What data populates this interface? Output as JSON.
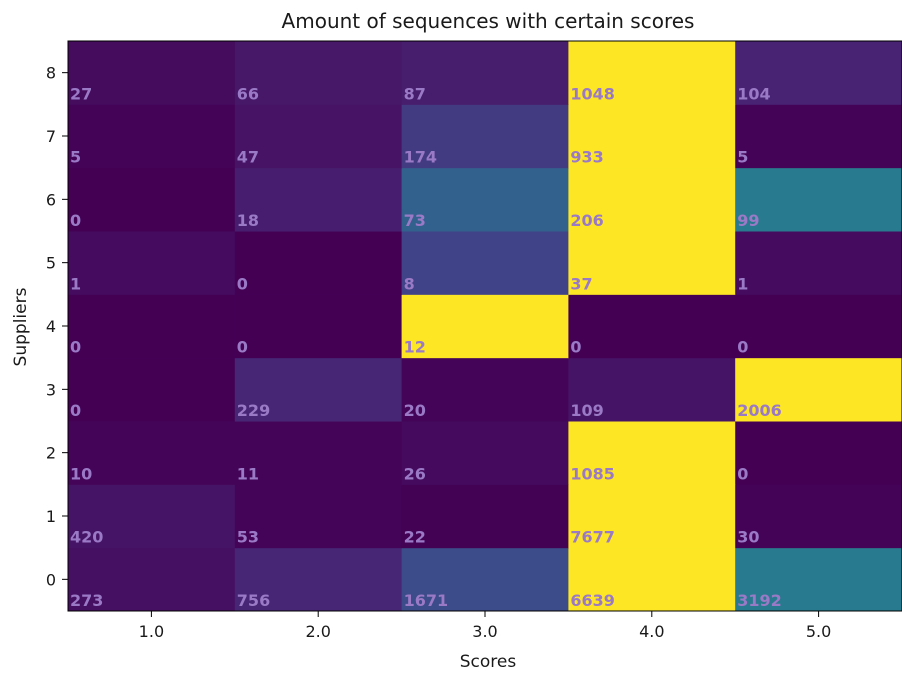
{
  "chart_data": {
    "type": "heatmap",
    "title": "Amount of sequences with certain scores",
    "xlabel": "Scores",
    "ylabel": "Suppliers",
    "x_tick_labels": [
      "1.0",
      "2.0",
      "3.0",
      "4.0",
      "5.0"
    ],
    "y_tick_labels": [
      "0",
      "1",
      "2",
      "3",
      "4",
      "5",
      "6",
      "7",
      "8"
    ],
    "colormap": "viridis",
    "grid": false,
    "value_label_color": "#9a79c6",
    "values": [
      [
        273,
        756,
        1671,
        6639,
        3192
      ],
      [
        420,
        53,
        22,
        7677,
        30
      ],
      [
        10,
        11,
        26,
        1085,
        0
      ],
      [
        0,
        229,
        20,
        109,
        2006
      ],
      [
        0,
        0,
        12,
        0,
        0
      ],
      [
        1,
        0,
        8,
        37,
        1
      ],
      [
        0,
        18,
        73,
        206,
        99
      ],
      [
        5,
        47,
        174,
        933,
        5
      ],
      [
        27,
        66,
        87,
        1048,
        104
      ]
    ]
  }
}
